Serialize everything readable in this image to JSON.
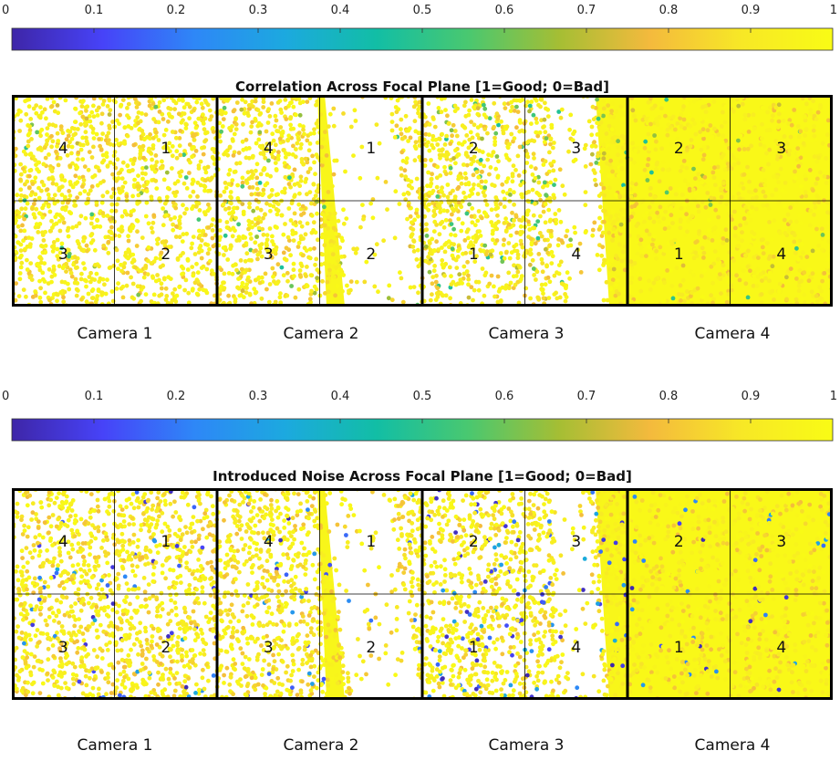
{
  "colorbar": {
    "tick_labels": [
      "0",
      "0.1",
      "0.2",
      "0.3",
      "0.4",
      "0.5",
      "0.6",
      "0.7",
      "0.8",
      "0.9",
      "1"
    ],
    "range": [
      0,
      1
    ],
    "colormap": [
      "#3e26a8",
      "#4743f8",
      "#2e87f7",
      "#1ca9df",
      "#12bea5",
      "#49c870",
      "#a5be34",
      "#f4ba3d",
      "#f7e826",
      "#f9fb15"
    ]
  },
  "chart_data": [
    {
      "type": "scatter",
      "title": "Correlation Across Focal Plane [1=Good; 0=Bad]",
      "cameras": [
        "Camera 1",
        "Camera 2",
        "Camera 3",
        "Camera 4"
      ],
      "ccd_layout": {
        "camera_1": [
          "4",
          "1",
          "3",
          "2"
        ],
        "camera_2": [
          "4",
          "1",
          "3",
          "2"
        ],
        "camera_3": [
          "2",
          "3",
          "1",
          "4"
        ],
        "camera_4": [
          "2",
          "3",
          "1",
          "4"
        ]
      },
      "color_range": [
        0,
        1
      ],
      "typical_value": 0.95,
      "low_value_fraction": 0.03
    },
    {
      "type": "scatter",
      "title": "Introduced Noise Across Focal Plane [1=Good; 0=Bad]",
      "cameras": [
        "Camera 1",
        "Camera 2",
        "Camera 3",
        "Camera 4"
      ],
      "ccd_layout": {
        "camera_1": [
          "4",
          "1",
          "3",
          "2"
        ],
        "camera_2": [
          "4",
          "1",
          "3",
          "2"
        ],
        "camera_3": [
          "2",
          "3",
          "1",
          "4"
        ],
        "camera_4": [
          "2",
          "3",
          "1",
          "4"
        ]
      },
      "color_range": [
        0,
        1
      ],
      "typical_value": 0.98,
      "low_value_fraction": 0.04
    }
  ]
}
